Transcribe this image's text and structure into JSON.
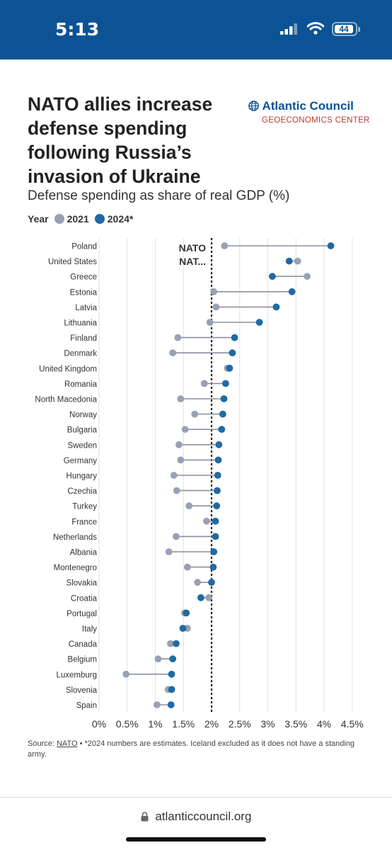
{
  "status_bar": {
    "time": "5:13",
    "battery": "44",
    "colors": {
      "background": "#0b5394"
    }
  },
  "header": {
    "title": "NATO allies increase defense spending following Russia’s invasion of Ukraine",
    "subtitle": "Defense spending as share of real GDP (%)",
    "logo_name": "Atlantic Council",
    "logo_sub": "GEOECONOMICS CENTER",
    "logo_icon": "globe-icon"
  },
  "legend": {
    "label": "Year",
    "items": [
      "2021",
      "2024*"
    ]
  },
  "chart_data": {
    "type": "dumbbell",
    "title": "NATO allies increase defense spending following Russia’s invasion of Ukraine",
    "subtitle": "Defense spending as share of real GDP (%)",
    "categories": [
      "Poland",
      "United States",
      "Greece",
      "Estonia",
      "Latvia",
      "Lithuania",
      "Finland",
      "Denmark",
      "United Kingdom",
      "Romania",
      "North Macedonia",
      "Norway",
      "Bulgaria",
      "Sweden",
      "Germany",
      "Hungary",
      "Czechia",
      "Turkey",
      "France",
      "Netherlands",
      "Albania",
      "Montenegro",
      "Slovakia",
      "Croatia",
      "Portugal",
      "Italy",
      "Canada",
      "Belgium",
      "Luxemburg",
      "Slovenia",
      "Spain"
    ],
    "series": [
      {
        "name": "2021",
        "color": "#9aa0b5",
        "values": [
          2.23,
          3.53,
          3.7,
          2.04,
          2.08,
          1.97,
          1.4,
          1.31,
          2.28,
          1.87,
          1.45,
          1.7,
          1.53,
          1.42,
          1.45,
          1.33,
          1.38,
          1.6,
          1.91,
          1.37,
          1.24,
          1.57,
          1.75,
          1.95,
          1.52,
          1.57,
          1.27,
          1.05,
          0.48,
          1.23,
          1.03
        ]
      },
      {
        "name": "2024*",
        "color": "#1f6aa5",
        "values": [
          4.12,
          3.38,
          3.08,
          3.43,
          3.15,
          2.85,
          2.41,
          2.37,
          2.32,
          2.25,
          2.22,
          2.2,
          2.18,
          2.13,
          2.12,
          2.11,
          2.1,
          2.09,
          2.07,
          2.07,
          2.04,
          2.03,
          2.0,
          1.81,
          1.55,
          1.49,
          1.37,
          1.31,
          1.29,
          1.29,
          1.28
        ]
      }
    ],
    "threshold": {
      "value": 2,
      "label_lines": [
        "NATO",
        "NAT..."
      ]
    },
    "xlim": [
      0,
      4.5
    ],
    "x_ticks": [
      "0%",
      "0.5%",
      "1%",
      "1.5%",
      "2%",
      "2.5%",
      "3%",
      "3.5%",
      "4%",
      "4.5%"
    ],
    "grid": true
  },
  "footer": {
    "source_label": "Source: ",
    "source_link": "NATO",
    "source_note": " • *2024 numbers are estimates. Iceland excluded as it does not have a standing army."
  },
  "browser": {
    "url": "atlanticcouncil.org"
  }
}
